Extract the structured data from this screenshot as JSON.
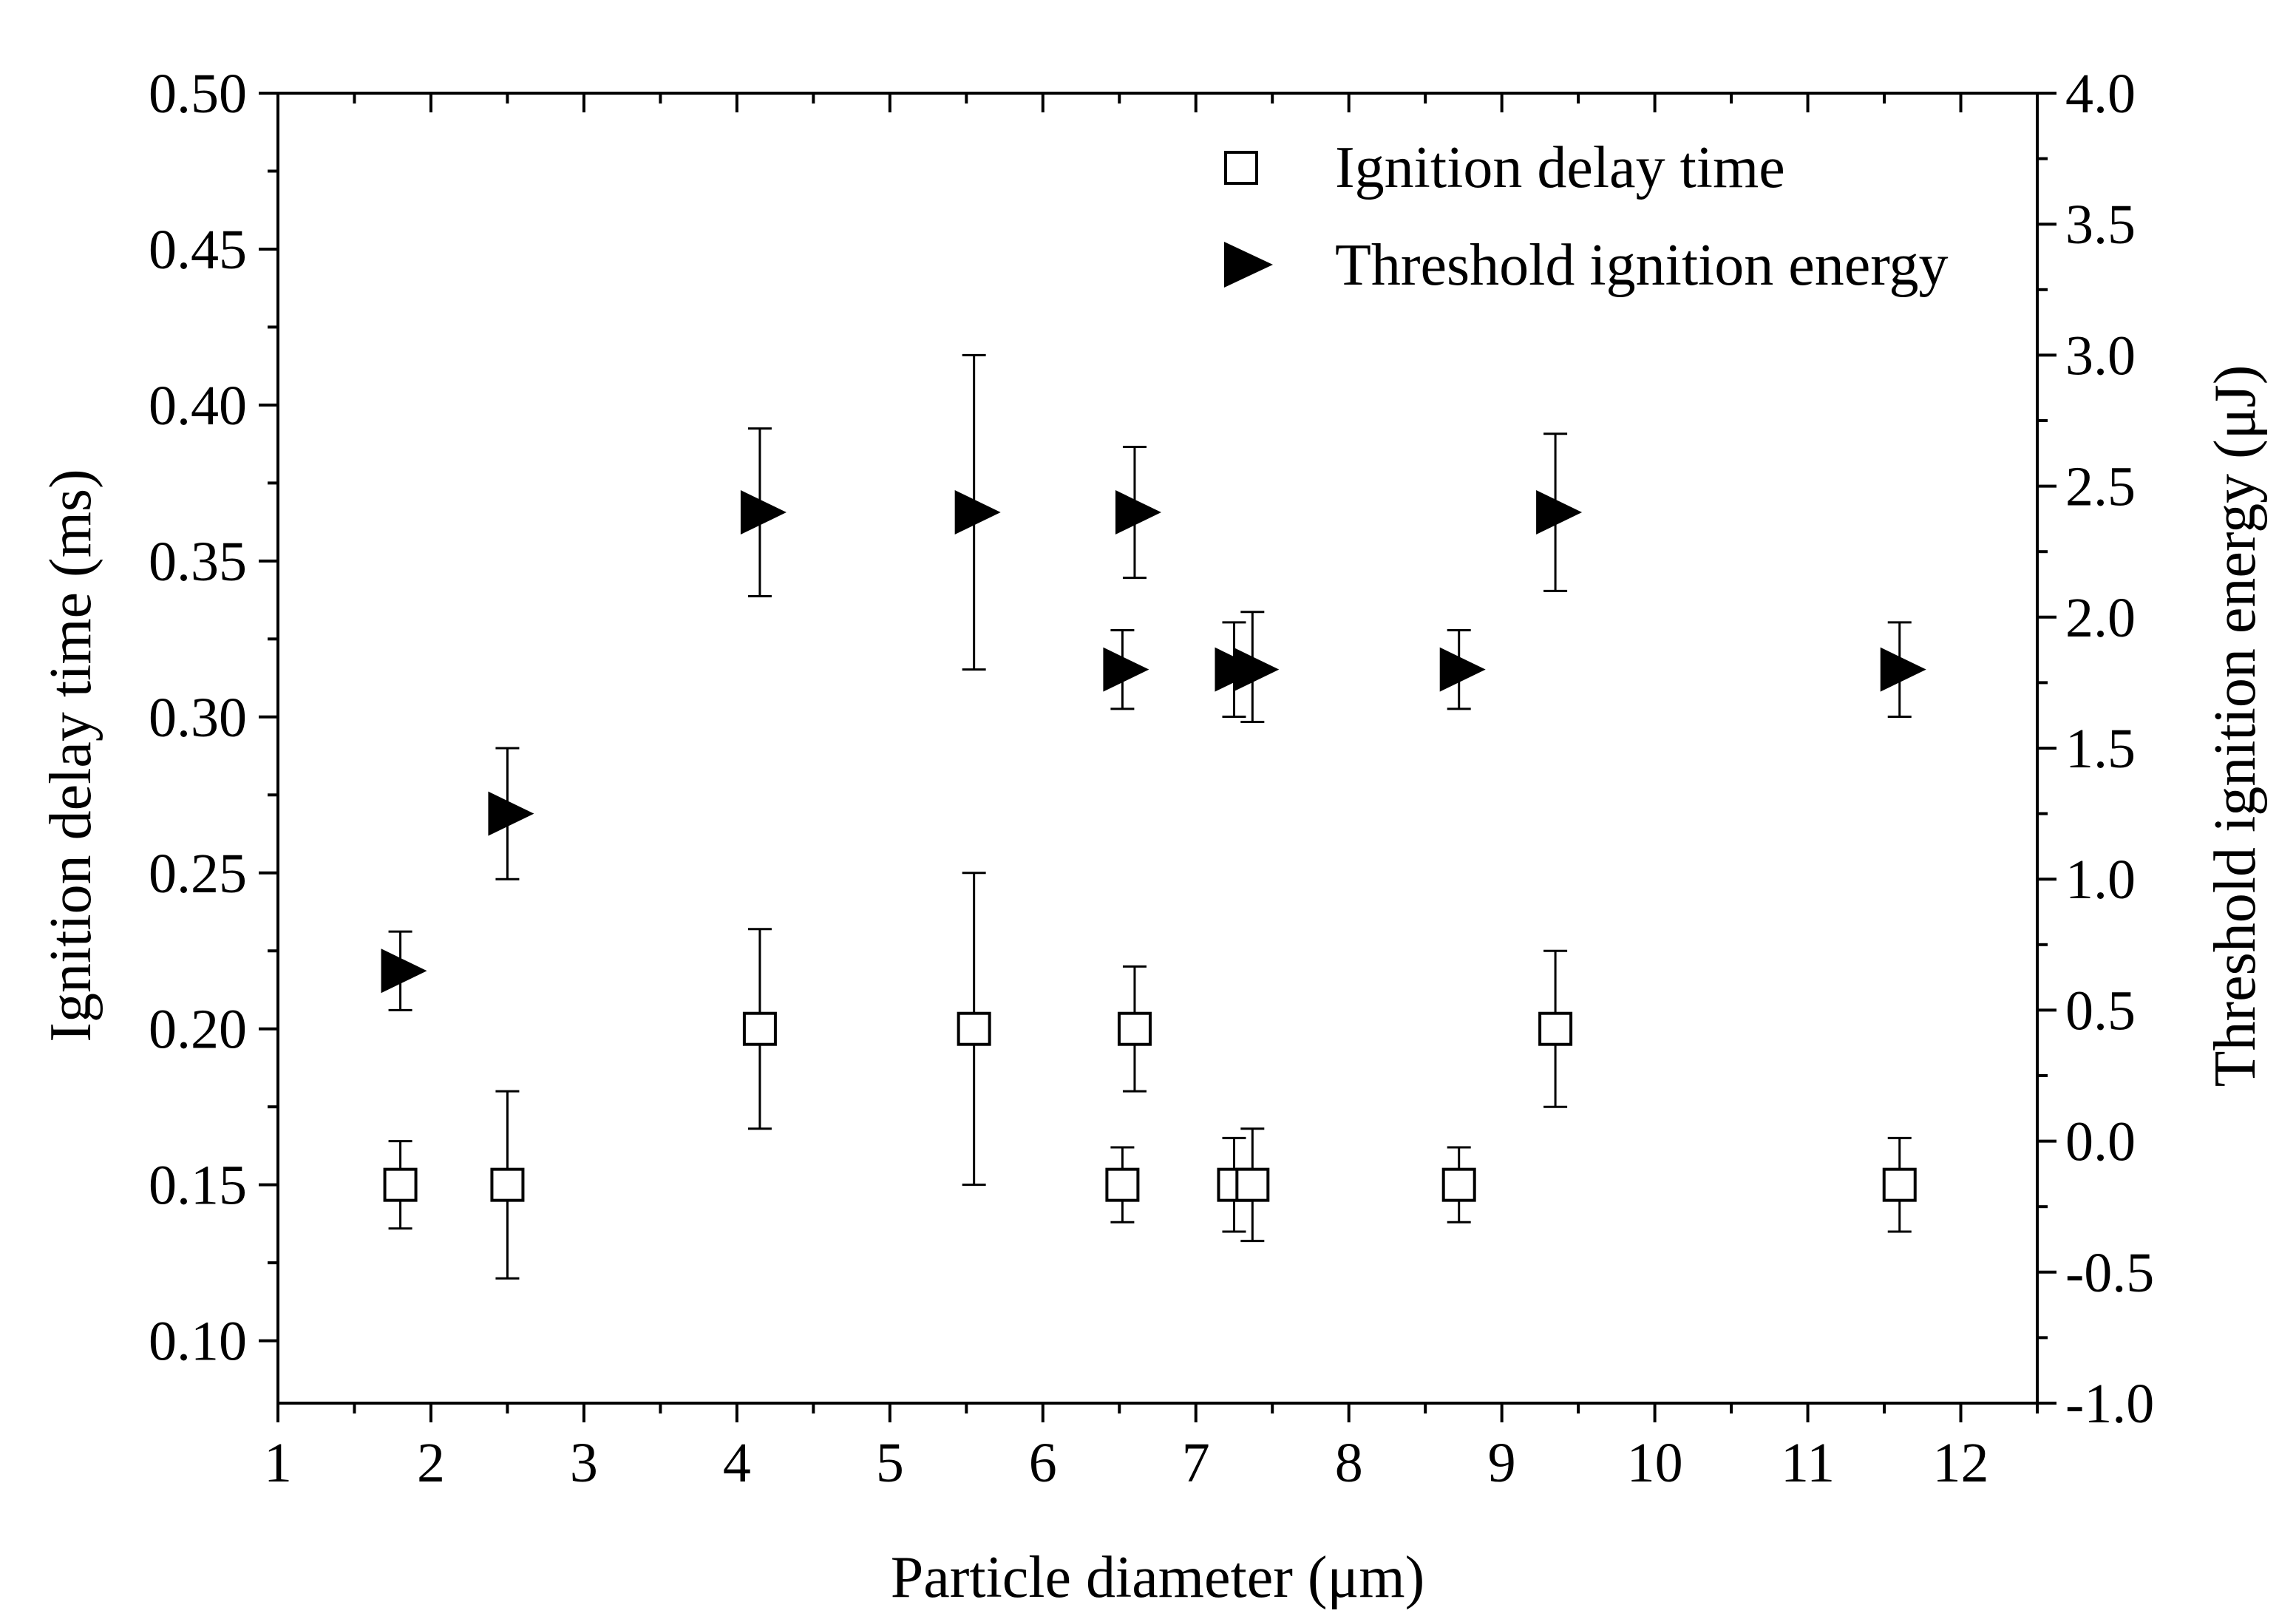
{
  "chart_data": {
    "type": "scatter",
    "title": "",
    "xlabel": "Particle diameter (μm)",
    "ylabel": "Ignition delay time (ms)",
    "y2label": "Threshold ignition energy (μJ)",
    "xlim": [
      1,
      12.5
    ],
    "ylim": [
      0.08,
      0.5
    ],
    "y2lim": [
      -1.0,
      4.0
    ],
    "x_ticks": [
      "1",
      "2",
      "3",
      "4",
      "5",
      "6",
      "7",
      "8",
      "9",
      "10",
      "11",
      "12"
    ],
    "y_ticks": [
      "0.10",
      "0.15",
      "0.20",
      "0.25",
      "0.30",
      "0.35",
      "0.40",
      "0.45",
      "0.50"
    ],
    "y2_ticks": [
      "-1.0",
      "-0.5",
      "0.0",
      "0.5",
      "1.0",
      "1.5",
      "2.0",
      "2.5",
      "3.0",
      "3.5",
      "4.0"
    ],
    "legend_position": "top-right",
    "series": [
      {
        "name": "Ignition delay time",
        "axis": "left",
        "marker": "open-square",
        "points": [
          {
            "x": 1.8,
            "y": 0.15,
            "err_low": 0.136,
            "err_high": 0.164
          },
          {
            "x": 2.5,
            "y": 0.15,
            "err_low": 0.12,
            "err_high": 0.18
          },
          {
            "x": 4.15,
            "y": 0.2,
            "err_low": 0.168,
            "err_high": 0.232
          },
          {
            "x": 5.55,
            "y": 0.2,
            "err_low": 0.15,
            "err_high": 0.25
          },
          {
            "x": 6.52,
            "y": 0.15,
            "err_low": 0.138,
            "err_high": 0.162
          },
          {
            "x": 6.6,
            "y": 0.2,
            "err_low": 0.18,
            "err_high": 0.22
          },
          {
            "x": 7.25,
            "y": 0.15,
            "err_low": 0.135,
            "err_high": 0.165
          },
          {
            "x": 7.37,
            "y": 0.15,
            "err_low": 0.132,
            "err_high": 0.168
          },
          {
            "x": 8.72,
            "y": 0.15,
            "err_low": 0.138,
            "err_high": 0.162
          },
          {
            "x": 9.35,
            "y": 0.2,
            "err_low": 0.175,
            "err_high": 0.225
          },
          {
            "x": 11.6,
            "y": 0.15,
            "err_low": 0.135,
            "err_high": 0.165
          }
        ]
      },
      {
        "name": "Threshold ignition energy",
        "axis": "right",
        "marker": "filled-right-triangle",
        "points": [
          {
            "x": 1.8,
            "y": 0.65,
            "err_low": 0.5,
            "err_high": 0.8
          },
          {
            "x": 2.5,
            "y": 1.25,
            "err_low": 1.0,
            "err_high": 1.5
          },
          {
            "x": 4.15,
            "y": 2.4,
            "err_low": 2.08,
            "err_high": 2.72
          },
          {
            "x": 5.55,
            "y": 2.4,
            "err_low": 1.8,
            "err_high": 3.0
          },
          {
            "x": 6.52,
            "y": 1.8,
            "err_low": 1.65,
            "err_high": 1.95
          },
          {
            "x": 6.6,
            "y": 2.4,
            "err_low": 2.15,
            "err_high": 2.65
          },
          {
            "x": 7.25,
            "y": 1.8,
            "err_low": 1.62,
            "err_high": 1.98
          },
          {
            "x": 7.37,
            "y": 1.8,
            "err_low": 1.6,
            "err_high": 2.02
          },
          {
            "x": 8.72,
            "y": 1.8,
            "err_low": 1.65,
            "err_high": 1.95
          },
          {
            "x": 9.35,
            "y": 2.4,
            "err_low": 2.1,
            "err_high": 2.7
          },
          {
            "x": 11.6,
            "y": 1.8,
            "err_low": 1.62,
            "err_high": 1.98
          }
        ]
      }
    ]
  },
  "legend": {
    "items": [
      "Ignition delay time",
      "Threshold ignition energy"
    ]
  }
}
